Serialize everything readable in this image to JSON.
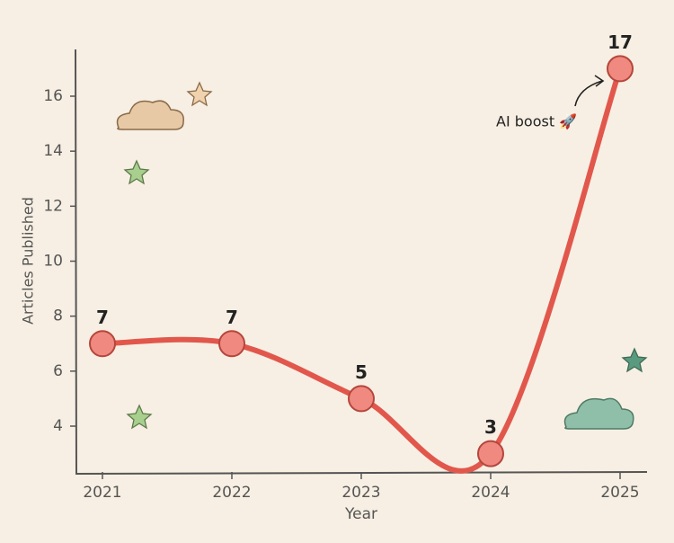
{
  "chart_data": {
    "type": "line",
    "x_label": "Year",
    "y_label": "Articles Published",
    "categories": [
      "2021",
      "2022",
      "2023",
      "2024",
      "2025"
    ],
    "series": [
      {
        "name": "Articles Published",
        "color": "#e2574c",
        "values": [
          7,
          7,
          5,
          3,
          17
        ]
      }
    ],
    "ylim": [
      2.3,
      17.7
    ],
    "yticks": [
      4,
      6,
      8,
      10,
      12,
      14,
      16
    ],
    "annotation": "AI boost 🚀"
  }
}
